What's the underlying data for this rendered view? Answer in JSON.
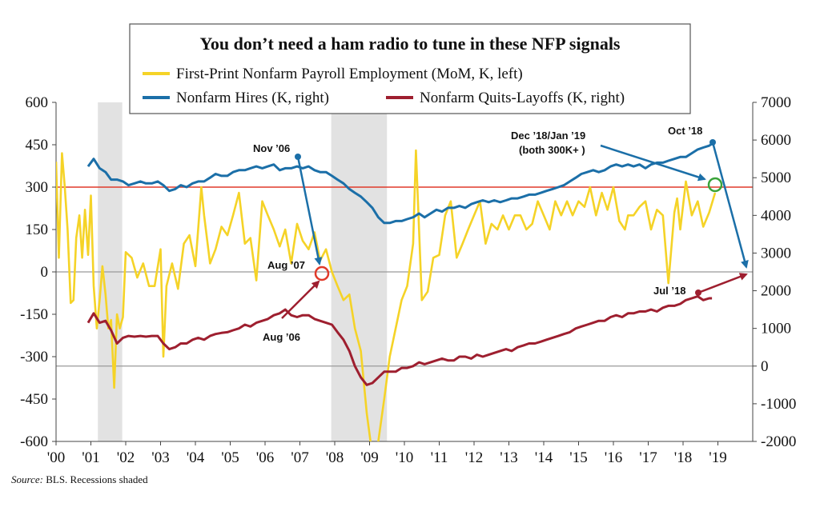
{
  "chart_data": {
    "type": "line",
    "title": "You don’t need a ham radio to tune in these NFP signals",
    "source_label": "Source:",
    "source_text": " BLS. Recessions shaded",
    "x_ticks": [
      "'00",
      "'01",
      "'02",
      "'03",
      "'04",
      "'05",
      "'06",
      "'07",
      "'08",
      "'09",
      "'10",
      "'11",
      "'12",
      "'13",
      "'14",
      "'15",
      "'16",
      "'17",
      "'18",
      "'19"
    ],
    "x_range": [
      2000,
      2020
    ],
    "left_axis": {
      "ticks": [
        600,
        450,
        300,
        150,
        0,
        -150,
        -300,
        -450,
        -600
      ],
      "range": [
        -600,
        600
      ]
    },
    "right_axis": {
      "ticks": [
        7000,
        6000,
        5000,
        4000,
        3000,
        2000,
        1000,
        0,
        -1000,
        -2000
      ],
      "range": [
        -2000,
        7000
      ]
    },
    "recessions": [
      [
        2001.2,
        2001.9
      ],
      [
        2007.9,
        2009.5
      ]
    ],
    "reference_lines": [
      {
        "axis": "left",
        "value": 300,
        "color": "#e03a2a"
      },
      {
        "axis": "left",
        "value": 0,
        "color": "#9a9a9a"
      },
      {
        "axis": "right",
        "value": 0,
        "color": "#9a9a9a"
      }
    ],
    "series": [
      {
        "name": "First-Print Nonfarm Payroll Employment (MoM, K, left)",
        "axis": "left",
        "color": "#f5d327",
        "x": [
          2000.0,
          2000.08,
          2000.17,
          2000.25,
          2000.33,
          2000.42,
          2000.5,
          2000.58,
          2000.67,
          2000.75,
          2000.83,
          2000.92,
          2001.0,
          2001.08,
          2001.17,
          2001.25,
          2001.33,
          2001.42,
          2001.5,
          2001.58,
          2001.67,
          2001.75,
          2001.83,
          2001.92,
          2002.0,
          2002.17,
          2002.33,
          2002.5,
          2002.67,
          2002.83,
          2003.0,
          2003.08,
          2003.17,
          2003.33,
          2003.5,
          2003.67,
          2003.83,
          2004.0,
          2004.17,
          2004.25,
          2004.42,
          2004.58,
          2004.75,
          2004.92,
          2005.08,
          2005.25,
          2005.42,
          2005.58,
          2005.75,
          2005.92,
          2006.08,
          2006.25,
          2006.42,
          2006.58,
          2006.75,
          2006.92,
          2007.08,
          2007.25,
          2007.42,
          2007.58,
          2007.75,
          2007.92,
          2008.08,
          2008.25,
          2008.42,
          2008.58,
          2008.75,
          2008.92,
          2009.08,
          2009.25,
          2009.42,
          2009.58,
          2009.75,
          2009.92,
          2010.08,
          2010.25,
          2010.33,
          2010.42,
          2010.5,
          2010.67,
          2010.83,
          2011.0,
          2011.17,
          2011.33,
          2011.5,
          2011.67,
          2011.83,
          2012.0,
          2012.17,
          2012.33,
          2012.5,
          2012.67,
          2012.83,
          2013.0,
          2013.17,
          2013.33,
          2013.5,
          2013.67,
          2013.83,
          2014.0,
          2014.17,
          2014.33,
          2014.5,
          2014.67,
          2014.83,
          2015.0,
          2015.17,
          2015.33,
          2015.5,
          2015.67,
          2015.83,
          2016.0,
          2016.17,
          2016.33,
          2016.42,
          2016.58,
          2016.75,
          2016.92,
          2017.08,
          2017.25,
          2017.42,
          2017.58,
          2017.75,
          2017.83,
          2017.92,
          2018.08,
          2018.25,
          2018.42,
          2018.58,
          2018.75,
          2018.92
        ],
        "values": [
          390,
          50,
          420,
          300,
          150,
          -110,
          -100,
          120,
          200,
          50,
          220,
          60,
          270,
          -50,
          -200,
          -100,
          20,
          -80,
          -200,
          -170,
          -410,
          -150,
          -200,
          -160,
          70,
          50,
          -20,
          30,
          -50,
          -50,
          80,
          -300,
          -50,
          30,
          -60,
          100,
          130,
          20,
          300,
          200,
          30,
          80,
          160,
          130,
          200,
          280,
          100,
          120,
          -30,
          250,
          200,
          150,
          90,
          150,
          30,
          170,
          110,
          80,
          140,
          40,
          80,
          0,
          -50,
          -100,
          -80,
          -200,
          -280,
          -500,
          -650,
          -600,
          -450,
          -300,
          -200,
          -100,
          -50,
          100,
          430,
          150,
          -100,
          -70,
          50,
          60,
          200,
          250,
          50,
          100,
          150,
          200,
          250,
          100,
          170,
          150,
          200,
          150,
          200,
          200,
          150,
          170,
          250,
          200,
          150,
          250,
          200,
          250,
          200,
          250,
          230,
          300,
          200,
          280,
          220,
          300,
          180,
          150,
          200,
          200,
          230,
          250,
          150,
          220,
          200,
          -40,
          210,
          260,
          150,
          320,
          200,
          250,
          160,
          210,
          280
        ]
      },
      {
        "name": "Nonfarm Hires (K, right)",
        "axis": "right",
        "color": "#1b6fa8",
        "x": [
          2000.92,
          2001.08,
          2001.25,
          2001.42,
          2001.58,
          2001.75,
          2001.92,
          2002.08,
          2002.25,
          2002.42,
          2002.58,
          2002.75,
          2002.92,
          2003.08,
          2003.25,
          2003.42,
          2003.58,
          2003.75,
          2003.92,
          2004.08,
          2004.25,
          2004.42,
          2004.58,
          2004.75,
          2004.92,
          2005.08,
          2005.25,
          2005.42,
          2005.58,
          2005.75,
          2005.92,
          2006.08,
          2006.25,
          2006.42,
          2006.58,
          2006.75,
          2006.92,
          2007.08,
          2007.25,
          2007.42,
          2007.58,
          2007.75,
          2007.92,
          2008.08,
          2008.25,
          2008.42,
          2008.58,
          2008.75,
          2008.92,
          2009.08,
          2009.25,
          2009.42,
          2009.58,
          2009.75,
          2009.92,
          2010.08,
          2010.25,
          2010.42,
          2010.58,
          2010.75,
          2010.92,
          2011.08,
          2011.25,
          2011.42,
          2011.58,
          2011.75,
          2011.92,
          2012.08,
          2012.25,
          2012.42,
          2012.58,
          2012.75,
          2012.92,
          2013.08,
          2013.25,
          2013.42,
          2013.58,
          2013.75,
          2013.92,
          2014.08,
          2014.25,
          2014.42,
          2014.58,
          2014.75,
          2014.92,
          2015.08,
          2015.25,
          2015.42,
          2015.58,
          2015.75,
          2015.92,
          2016.08,
          2016.25,
          2016.42,
          2016.58,
          2016.75,
          2016.92,
          2017.08,
          2017.25,
          2017.42,
          2017.58,
          2017.75,
          2017.92,
          2018.08,
          2018.25,
          2018.42,
          2018.58,
          2018.75,
          2018.83
        ],
        "values": [
          5300,
          5500,
          5250,
          5150,
          4950,
          4950,
          4900,
          4800,
          4850,
          4900,
          4850,
          4850,
          4900,
          4800,
          4650,
          4700,
          4800,
          4750,
          4850,
          4900,
          4900,
          5000,
          5100,
          5050,
          5050,
          5150,
          5200,
          5200,
          5250,
          5300,
          5250,
          5300,
          5350,
          5200,
          5250,
          5250,
          5300,
          5250,
          5300,
          5200,
          5150,
          5150,
          5050,
          4950,
          4850,
          4700,
          4600,
          4500,
          4350,
          4200,
          3950,
          3800,
          3800,
          3850,
          3850,
          3900,
          3950,
          4050,
          3950,
          4050,
          4150,
          4100,
          4200,
          4200,
          4250,
          4200,
          4300,
          4350,
          4400,
          4350,
          4400,
          4350,
          4400,
          4450,
          4450,
          4500,
          4550,
          4550,
          4600,
          4650,
          4700,
          4750,
          4800,
          4900,
          5000,
          5100,
          5150,
          5200,
          5150,
          5200,
          5300,
          5350,
          5300,
          5350,
          5300,
          5350,
          5250,
          5350,
          5400,
          5400,
          5450,
          5500,
          5550,
          5550,
          5650,
          5750,
          5800,
          5850,
          5900
        ]
      },
      {
        "name": "Nonfarm Quits-Layoffs (K, right)",
        "axis": "right",
        "color": "#9e1f2f",
        "x": [
          2000.92,
          2001.08,
          2001.25,
          2001.42,
          2001.58,
          2001.75,
          2001.92,
          2002.08,
          2002.25,
          2002.42,
          2002.58,
          2002.75,
          2002.92,
          2003.08,
          2003.25,
          2003.42,
          2003.58,
          2003.75,
          2003.92,
          2004.08,
          2004.25,
          2004.42,
          2004.58,
          2004.75,
          2004.92,
          2005.08,
          2005.25,
          2005.42,
          2005.58,
          2005.75,
          2005.92,
          2006.08,
          2006.25,
          2006.42,
          2006.58,
          2006.75,
          2006.92,
          2007.08,
          2007.25,
          2007.42,
          2007.58,
          2007.75,
          2007.92,
          2008.08,
          2008.25,
          2008.42,
          2008.58,
          2008.75,
          2008.92,
          2009.08,
          2009.25,
          2009.42,
          2009.58,
          2009.75,
          2009.92,
          2010.08,
          2010.25,
          2010.42,
          2010.58,
          2010.75,
          2010.92,
          2011.08,
          2011.25,
          2011.42,
          2011.58,
          2011.75,
          2011.92,
          2012.08,
          2012.25,
          2012.42,
          2012.58,
          2012.75,
          2012.92,
          2013.08,
          2013.25,
          2013.42,
          2013.58,
          2013.75,
          2013.92,
          2014.08,
          2014.25,
          2014.42,
          2014.58,
          2014.75,
          2014.92,
          2015.08,
          2015.25,
          2015.42,
          2015.58,
          2015.75,
          2015.92,
          2016.08,
          2016.25,
          2016.42,
          2016.58,
          2016.75,
          2016.92,
          2017.08,
          2017.25,
          2017.42,
          2017.58,
          2017.75,
          2017.92,
          2018.08,
          2018.25,
          2018.42,
          2018.58,
          2018.75,
          2018.83
        ],
        "values": [
          1150,
          1400,
          1150,
          1200,
          950,
          600,
          750,
          800,
          780,
          800,
          780,
          800,
          800,
          600,
          450,
          500,
          600,
          600,
          700,
          750,
          700,
          800,
          850,
          880,
          900,
          950,
          1000,
          1100,
          1050,
          1150,
          1200,
          1250,
          1350,
          1400,
          1500,
          1350,
          1300,
          1350,
          1350,
          1250,
          1200,
          1150,
          1100,
          900,
          700,
          400,
          0,
          -300,
          -500,
          -450,
          -300,
          -150,
          -150,
          -150,
          -50,
          -50,
          0,
          100,
          50,
          100,
          150,
          200,
          150,
          150,
          250,
          250,
          200,
          300,
          250,
          300,
          350,
          400,
          450,
          400,
          500,
          550,
          600,
          600,
          650,
          700,
          750,
          800,
          850,
          900,
          1000,
          1050,
          1100,
          1150,
          1200,
          1200,
          1300,
          1350,
          1300,
          1400,
          1400,
          1450,
          1450,
          1500,
          1450,
          1550,
          1600,
          1600,
          1650,
          1750,
          1800,
          1850,
          1750,
          1800,
          1800
        ]
      }
    ],
    "legend": [
      {
        "label": "First-Print Nonfarm Payroll Employment (MoM, K, left)",
        "color": "#f5d327"
      },
      {
        "label": "Nonfarm Hires (K, right)",
        "color": "#1b6fa8"
      },
      {
        "label": "Nonfarm Quits-Layoffs (K, right)",
        "color": "#9e1f2f"
      }
    ],
    "annotations": [
      {
        "id": "nov06",
        "lines": [
          "Nov ’06"
        ],
        "color": "#1b6fa8"
      },
      {
        "id": "aug07",
        "lines": [
          "Aug ’07"
        ],
        "color": "#e03a2a"
      },
      {
        "id": "aug06",
        "lines": [
          "Aug ’06"
        ],
        "color": "#9e1f2f"
      },
      {
        "id": "dec18",
        "lines": [
          "Dec ’18/Jan ’19",
          "(both 300K+ )"
        ],
        "color": "#1b6fa8"
      },
      {
        "id": "oct18",
        "lines": [
          "Oct ’18"
        ],
        "color": "#1b6fa8"
      },
      {
        "id": "jul18",
        "lines": [
          "Jul ’18"
        ],
        "color": "#9e1f2f"
      }
    ]
  }
}
